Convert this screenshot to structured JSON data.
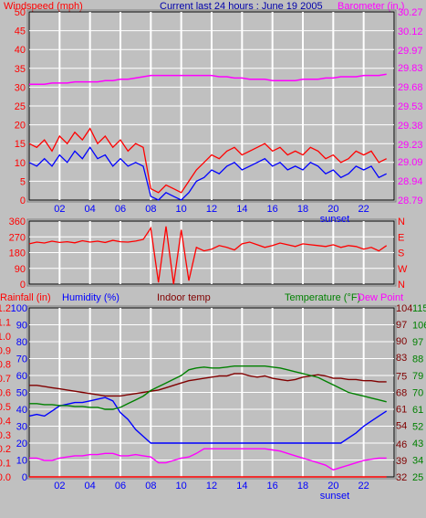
{
  "colors": {
    "background": "#c0c0c0",
    "plot_bg": "#c0c0c0",
    "grid": "#ffffff",
    "windspeed": "#ff0000",
    "windgust_low": "#0000ff",
    "barometer": "#ff00ff",
    "wind_dir": "#ff0000",
    "rainfall": "#ff0000",
    "humidity": "#0000ff",
    "indoor_temp": "#800000",
    "temperature": "#008000",
    "dew_point": "#ff00ff",
    "title": "#0000aa",
    "frame": "#000000"
  },
  "header": {
    "left": "Windspeed (mph)",
    "center": "Current last 24 hours : June 19 2005",
    "right": "Barometer (in.)"
  },
  "x_ticks": [
    "02",
    "04",
    "06",
    "08",
    "10",
    "12",
    "14",
    "16",
    "18",
    "20",
    "22"
  ],
  "sunset_label": "sunset",
  "chart_data": [
    {
      "type": "line",
      "title": "Current last 24 hours : June 19 2005",
      "x_hours": [
        0,
        0.5,
        1,
        1.5,
        2,
        2.5,
        3,
        3.5,
        4,
        4.5,
        5,
        5.5,
        6,
        6.5,
        7,
        7.5,
        8,
        8.5,
        9,
        9.5,
        10,
        10.5,
        11,
        11.5,
        12,
        12.5,
        13,
        13.5,
        14,
        14.5,
        15,
        15.5,
        16,
        16.5,
        17,
        17.5,
        18,
        18.5,
        19,
        19.5,
        20,
        20.5,
        21,
        21.5,
        22,
        22.5,
        23,
        23.5
      ],
      "left_axis": {
        "label": "Windspeed (mph)",
        "ticks": [
          0,
          5,
          10,
          15,
          20,
          25,
          30,
          35,
          40,
          45,
          50
        ],
        "ylim": [
          0,
          50
        ]
      },
      "right_axis": {
        "label": "Barometer (in.)",
        "ticks": [
          "28.79",
          "28.94",
          "29.09",
          "29.23",
          "29.38",
          "29.53",
          "29.68",
          "29.83",
          "29.97",
          "30.12",
          "30.27"
        ],
        "ylim": [
          28.79,
          30.27
        ]
      },
      "series": [
        {
          "key": "windspeed",
          "axis": "left",
          "values": [
            15,
            14,
            16,
            13,
            17,
            15,
            18,
            16,
            19,
            15,
            17,
            14,
            16,
            13,
            15,
            14,
            3,
            2,
            4,
            3,
            2,
            5,
            8,
            10,
            12,
            11,
            13,
            14,
            12,
            13,
            14,
            15,
            13,
            14,
            12,
            13,
            12,
            14,
            13,
            11,
            12,
            10,
            11,
            13,
            12,
            13,
            10,
            11
          ]
        },
        {
          "key": "windgust_low",
          "axis": "left",
          "values": [
            10,
            9,
            11,
            9,
            12,
            10,
            13,
            11,
            14,
            11,
            12,
            9,
            11,
            9,
            10,
            9,
            1,
            0,
            2,
            1,
            0,
            2,
            5,
            6,
            8,
            7,
            9,
            10,
            8,
            9,
            10,
            11,
            9,
            10,
            8,
            9,
            8,
            10,
            9,
            7,
            8,
            6,
            7,
            9,
            8,
            9,
            6,
            7
          ]
        },
        {
          "key": "barometer",
          "axis": "right",
          "values": [
            29.7,
            29.7,
            29.7,
            29.71,
            29.71,
            29.71,
            29.72,
            29.72,
            29.72,
            29.72,
            29.73,
            29.73,
            29.74,
            29.74,
            29.75,
            29.76,
            29.77,
            29.77,
            29.77,
            29.77,
            29.77,
            29.77,
            29.77,
            29.77,
            29.77,
            29.76,
            29.76,
            29.75,
            29.75,
            29.74,
            29.74,
            29.74,
            29.73,
            29.73,
            29.73,
            29.73,
            29.74,
            29.74,
            29.74,
            29.75,
            29.75,
            29.76,
            29.76,
            29.76,
            29.77,
            29.77,
            29.77,
            29.78
          ]
        }
      ]
    },
    {
      "type": "line",
      "left_axis": {
        "label": "",
        "ticks": [
          0,
          90,
          180,
          270,
          360
        ],
        "ylim": [
          0,
          360
        ]
      },
      "right_axis": {
        "label": "",
        "ticks": [
          "N",
          "W",
          "S",
          "E",
          "N"
        ]
      },
      "series": [
        {
          "key": "wind_dir",
          "axis": "left",
          "values": [
            230,
            240,
            235,
            245,
            238,
            242,
            236,
            248,
            240,
            245,
            238,
            250,
            242,
            240,
            246,
            255,
            320,
            10,
            330,
            0,
            310,
            20,
            210,
            190,
            200,
            220,
            210,
            195,
            230,
            240,
            225,
            210,
            220,
            235,
            225,
            215,
            230,
            225,
            220,
            215,
            225,
            210,
            220,
            215,
            200,
            210,
            190,
            220
          ]
        }
      ]
    },
    {
      "type": "line",
      "left_axis": {
        "label": "Rainfall (in)",
        "ticks": [
          "0.0",
          "0.1",
          "0.2",
          "0.3",
          "0.4",
          "0.5",
          "0.6",
          "0.7",
          "0.8",
          "0.9",
          "1.0",
          "1.1",
          "1.2"
        ],
        "ylim": [
          0,
          1.2
        ]
      },
      "left_axis_2": {
        "label": "Humidity (%)",
        "ticks": [
          0,
          10,
          20,
          30,
          40,
          50,
          60,
          70,
          80,
          90,
          100
        ],
        "ylim": [
          0,
          100
        ]
      },
      "middle_label": "Indoor temp",
      "right_axis": {
        "label": "Temperature (°F)",
        "ticks": [
          25,
          34,
          43,
          52,
          61,
          70,
          79,
          88,
          97,
          106,
          115
        ],
        "ylim": [
          25,
          115
        ]
      },
      "right_axis_2": {
        "label": "Dew Point",
        "ticks": [
          32,
          39,
          46,
          54,
          61,
          68,
          75,
          83,
          90,
          97,
          104
        ],
        "ylim": [
          32,
          104
        ]
      },
      "series": [
        {
          "key": "rainfall",
          "axis": "left",
          "values": [
            0,
            0,
            0,
            0,
            0,
            0,
            0,
            0,
            0,
            0,
            0,
            0,
            0,
            0,
            0,
            0,
            0,
            0,
            0,
            0,
            0,
            0,
            0,
            0,
            0,
            0,
            0,
            0,
            0,
            0,
            0,
            0,
            0,
            0,
            0,
            0,
            0,
            0,
            0,
            0,
            0,
            0,
            0,
            0,
            0,
            0,
            0,
            0
          ]
        },
        {
          "key": "humidity",
          "axis": "left2",
          "values": [
            36,
            37,
            36,
            39,
            42,
            43,
            44,
            44,
            45,
            46,
            47,
            45,
            38,
            34,
            28,
            24,
            20,
            20,
            20,
            20,
            20,
            20,
            20,
            20,
            20,
            20,
            20,
            20,
            20,
            20,
            20,
            20,
            20,
            20,
            20,
            20,
            20,
            20,
            20,
            20,
            20,
            20,
            23,
            26,
            30,
            33,
            36,
            39
          ]
        },
        {
          "key": "indoor_temp",
          "axis": "right2",
          "values": [
            71,
            71,
            70.5,
            70,
            69.5,
            69,
            68.5,
            68,
            67.5,
            67,
            66.5,
            66.5,
            66.5,
            67,
            67.5,
            68,
            68.5,
            69,
            70,
            71,
            72,
            73,
            73.5,
            74,
            74.5,
            75,
            75,
            76,
            76,
            75,
            74.5,
            75,
            74,
            73.5,
            73,
            73.5,
            74.5,
            75,
            75.5,
            75,
            74,
            74,
            73.5,
            73.5,
            73,
            73,
            72.5,
            72.5
          ]
        },
        {
          "key": "temperature",
          "axis": "right",
          "values": [
            64,
            64,
            63.5,
            63.5,
            63,
            63,
            62.5,
            62.5,
            62,
            62,
            61,
            61,
            62,
            64,
            66,
            68,
            71,
            73,
            75,
            77,
            79,
            82,
            83,
            83.5,
            83,
            83,
            83.5,
            84,
            84,
            84,
            84,
            84,
            83.5,
            83,
            82,
            81,
            80,
            79,
            78,
            76,
            74,
            72,
            70,
            69,
            68,
            67,
            66,
            65
          ]
        },
        {
          "key": "dew_point",
          "axis": "right2",
          "values": [
            40,
            40,
            39,
            39,
            40,
            40.5,
            41,
            41,
            41.5,
            41.5,
            42,
            42,
            41,
            41,
            41.5,
            41,
            40.5,
            38,
            38,
            39,
            40,
            40.5,
            42,
            44,
            44,
            44,
            44,
            44,
            44,
            44,
            44,
            44,
            43.5,
            43,
            42,
            41,
            40,
            39,
            38,
            37,
            35,
            36,
            37,
            38,
            39,
            39.5,
            40,
            40
          ]
        }
      ]
    }
  ]
}
